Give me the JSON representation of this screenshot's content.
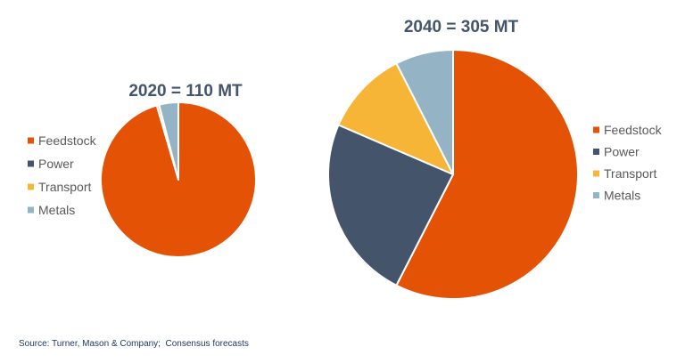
{
  "source_note": "Source: Turner, Mason & Company;  Consensus forecasts",
  "colors": {
    "title": "#44546a",
    "legend_text": "#595959",
    "source_text": "#1f3864",
    "slice_border": "#ffffff"
  },
  "chart_data": [
    {
      "type": "pie",
      "title": "2020 = 110 MT",
      "start_angle_deg": 0,
      "direction": "clockwise",
      "legend_position": "left",
      "slices": [
        {
          "label": "Feedstock",
          "value": 95.5,
          "color": "#e35205"
        },
        {
          "label": "Power",
          "value": 0,
          "color": "#44546a"
        },
        {
          "label": "Transport",
          "value": 0.5,
          "color": "#f7b538"
        },
        {
          "label": "Metals",
          "value": 4,
          "color": "#94b3c5"
        }
      ]
    },
    {
      "type": "pie",
      "title": "2040 = 305 MT",
      "start_angle_deg": 0,
      "direction": "clockwise",
      "legend_position": "right",
      "slices": [
        {
          "label": "Feedstock",
          "value": 57.5,
          "color": "#e35205"
        },
        {
          "label": "Power",
          "value": 24,
          "color": "#44546a"
        },
        {
          "label": "Transport",
          "value": 11,
          "color": "#f7b538"
        },
        {
          "label": "Metals",
          "value": 7.5,
          "color": "#94b3c5"
        }
      ]
    }
  ]
}
